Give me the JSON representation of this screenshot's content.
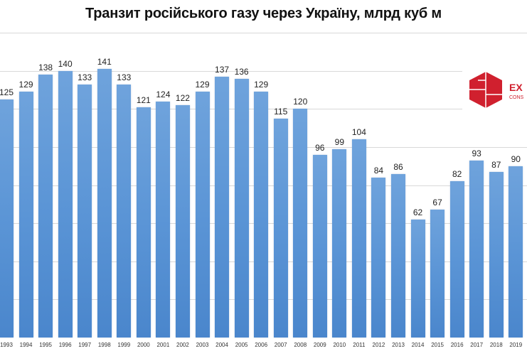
{
  "chart_data": {
    "type": "bar",
    "title": "Транзит російського газу через Україну, млрд куб м",
    "xlabel": "",
    "ylabel": "",
    "ylim": [
      0,
      160
    ],
    "grid": true,
    "gridline_step": 20,
    "legend": null,
    "categories": [
      "1993",
      "1994",
      "1995",
      "1996",
      "1997",
      "1998",
      "1999",
      "2000",
      "2001",
      "2002",
      "2003",
      "2004",
      "2005",
      "2006",
      "2007",
      "2008",
      "2009",
      "2010",
      "2011",
      "2012",
      "2013",
      "2014",
      "2015",
      "2016",
      "2017",
      "2018",
      "2019"
    ],
    "values": [
      125,
      129,
      138,
      140,
      133,
      141,
      133,
      121,
      124,
      122,
      129,
      137,
      136,
      129,
      115,
      120,
      96,
      99,
      104,
      84,
      86,
      62,
      67,
      82,
      93,
      87,
      90
    ],
    "bar_color": "#5b95d6"
  },
  "logo": {
    "text": "EX",
    "subtext": "CONS",
    "color": "#d0202e"
  }
}
